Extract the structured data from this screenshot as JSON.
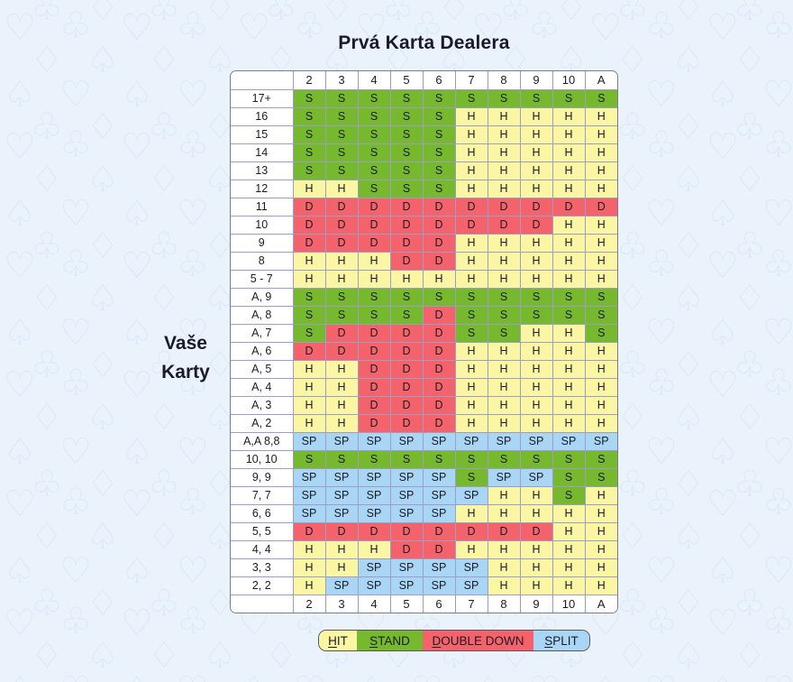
{
  "title": "Prvá Karta Dealera",
  "side_label": {
    "line1": "Vaše",
    "line2": "Karty"
  },
  "colors": {
    "background": "#EAF2FB",
    "pattern": "#DCE8F8",
    "grid_line": "#9C9EC4",
    "table_border": "#7C7C88",
    "text": "#1B1B26",
    "hit": "#FAF6A3",
    "stand": "#76B82E",
    "double_down": "#F4626B",
    "split": "#A9D6F5"
  },
  "chart_data": {
    "type": "table",
    "title": "Prvá Karta Dealera",
    "row_axis_label": "Vaše Karty",
    "columns": [
      "2",
      "3",
      "4",
      "5",
      "6",
      "7",
      "8",
      "9",
      "10",
      "A"
    ],
    "footer_columns": [
      "2",
      "3",
      "4",
      "5",
      "6",
      "7",
      "8",
      "9",
      "10",
      "A"
    ],
    "actions": {
      "H": {
        "label": "HIT",
        "color": "#FAF6A3"
      },
      "S": {
        "label": "STAND",
        "color": "#76B82E"
      },
      "D": {
        "label": "DOUBLE DOWN",
        "color": "#F4626B"
      },
      "SP": {
        "label": "SPLIT",
        "color": "#A9D6F5"
      }
    },
    "legend_order": [
      "H",
      "S",
      "D",
      "SP"
    ],
    "rows": [
      {
        "label": "17+",
        "cells": [
          "S",
          "S",
          "S",
          "S",
          "S",
          "S",
          "S",
          "S",
          "S",
          "S"
        ]
      },
      {
        "label": "16",
        "cells": [
          "S",
          "S",
          "S",
          "S",
          "S",
          "H",
          "H",
          "H",
          "H",
          "H"
        ]
      },
      {
        "label": "15",
        "cells": [
          "S",
          "S",
          "S",
          "S",
          "S",
          "H",
          "H",
          "H",
          "H",
          "H"
        ]
      },
      {
        "label": "14",
        "cells": [
          "S",
          "S",
          "S",
          "S",
          "S",
          "H",
          "H",
          "H",
          "H",
          "H"
        ]
      },
      {
        "label": "13",
        "cells": [
          "S",
          "S",
          "S",
          "S",
          "S",
          "H",
          "H",
          "H",
          "H",
          "H"
        ]
      },
      {
        "label": "12",
        "cells": [
          "H",
          "H",
          "S",
          "S",
          "S",
          "H",
          "H",
          "H",
          "H",
          "H"
        ]
      },
      {
        "label": "11",
        "cells": [
          "D",
          "D",
          "D",
          "D",
          "D",
          "D",
          "D",
          "D",
          "D",
          "D"
        ]
      },
      {
        "label": "10",
        "cells": [
          "D",
          "D",
          "D",
          "D",
          "D",
          "D",
          "D",
          "D",
          "H",
          "H"
        ]
      },
      {
        "label": "9",
        "cells": [
          "D",
          "D",
          "D",
          "D",
          "D",
          "H",
          "H",
          "H",
          "H",
          "H"
        ]
      },
      {
        "label": "8",
        "cells": [
          "H",
          "H",
          "H",
          "D",
          "D",
          "H",
          "H",
          "H",
          "H",
          "H"
        ]
      },
      {
        "label": "5 - 7",
        "cells": [
          "H",
          "H",
          "H",
          "H",
          "H",
          "H",
          "H",
          "H",
          "H",
          "H"
        ]
      },
      {
        "label": "A, 9",
        "cells": [
          "S",
          "S",
          "S",
          "S",
          "S",
          "S",
          "S",
          "S",
          "S",
          "S"
        ]
      },
      {
        "label": "A, 8",
        "cells": [
          "S",
          "S",
          "S",
          "S",
          "D",
          "S",
          "S",
          "S",
          "S",
          "S"
        ]
      },
      {
        "label": "A, 7",
        "cells": [
          "S",
          "D",
          "D",
          "D",
          "D",
          "S",
          "S",
          "H",
          "H",
          "S"
        ]
      },
      {
        "label": "A, 6",
        "cells": [
          "D",
          "D",
          "D",
          "D",
          "D",
          "H",
          "H",
          "H",
          "H",
          "H"
        ]
      },
      {
        "label": "A, 5",
        "cells": [
          "H",
          "H",
          "D",
          "D",
          "D",
          "H",
          "H",
          "H",
          "H",
          "H"
        ]
      },
      {
        "label": "A, 4",
        "cells": [
          "H",
          "H",
          "D",
          "D",
          "D",
          "H",
          "H",
          "H",
          "H",
          "H"
        ]
      },
      {
        "label": "A, 3",
        "cells": [
          "H",
          "H",
          "D",
          "D",
          "D",
          "H",
          "H",
          "H",
          "H",
          "H"
        ]
      },
      {
        "label": "A, 2",
        "cells": [
          "H",
          "H",
          "D",
          "D",
          "D",
          "H",
          "H",
          "H",
          "H",
          "H"
        ]
      },
      {
        "label": "A,A 8,8",
        "cells": [
          "SP",
          "SP",
          "SP",
          "SP",
          "SP",
          "SP",
          "SP",
          "SP",
          "SP",
          "SP"
        ]
      },
      {
        "label": "10, 10",
        "cells": [
          "S",
          "S",
          "S",
          "S",
          "S",
          "S",
          "S",
          "S",
          "S",
          "S"
        ]
      },
      {
        "label": "9, 9",
        "cells": [
          "SP",
          "SP",
          "SP",
          "SP",
          "SP",
          "S",
          "SP",
          "SP",
          "S",
          "S"
        ]
      },
      {
        "label": "7, 7",
        "cells": [
          "SP",
          "SP",
          "SP",
          "SP",
          "SP",
          "SP",
          "H",
          "H",
          "S",
          "H"
        ]
      },
      {
        "label": "6, 6",
        "cells": [
          "SP",
          "SP",
          "SP",
          "SP",
          "SP",
          "H",
          "H",
          "H",
          "H",
          "H"
        ]
      },
      {
        "label": "5, 5",
        "cells": [
          "D",
          "D",
          "D",
          "D",
          "D",
          "D",
          "D",
          "D",
          "H",
          "H"
        ]
      },
      {
        "label": "4, 4",
        "cells": [
          "H",
          "H",
          "H",
          "D",
          "D",
          "H",
          "H",
          "H",
          "H",
          "H"
        ]
      },
      {
        "label": "3, 3",
        "cells": [
          "H",
          "H",
          "SP",
          "SP",
          "SP",
          "SP",
          "H",
          "H",
          "H",
          "H"
        ]
      },
      {
        "label": "2, 2",
        "cells": [
          "H",
          "SP",
          "SP",
          "SP",
          "SP",
          "SP",
          "H",
          "H",
          "H",
          "H"
        ]
      }
    ]
  }
}
